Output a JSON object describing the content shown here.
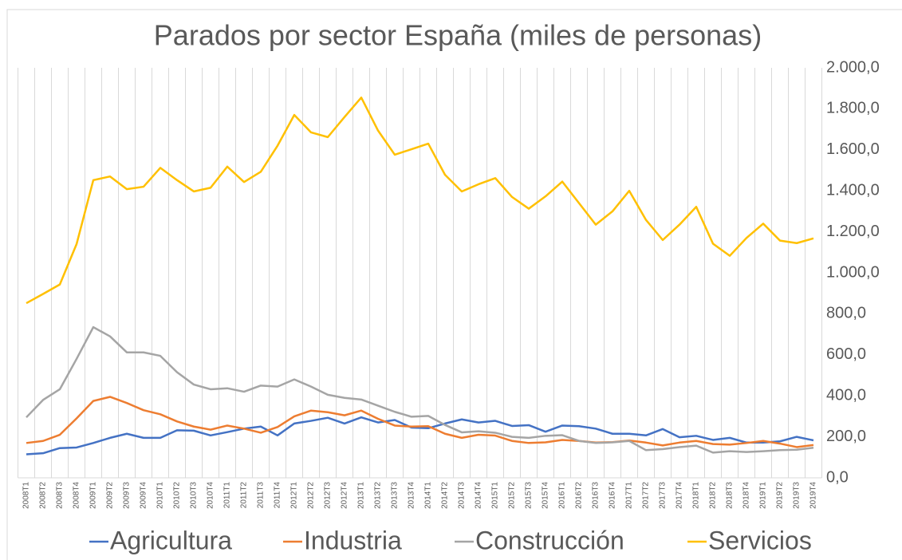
{
  "chart_data": {
    "type": "line",
    "title": "Parados por sector España (miles de personas)",
    "categories": [
      "2008T1",
      "2008T2",
      "2008T3",
      "2008T4",
      "2009T1",
      "2009T2",
      "2009T3",
      "2009T4",
      "2010T1",
      "2010T2",
      "2010T3",
      "2010T4",
      "2011T1",
      "2011T2",
      "2011T3",
      "2011T4",
      "2012T1",
      "2012T2",
      "2012T3",
      "2012T4",
      "2013T1",
      "2013T2",
      "2013T3",
      "2013T4",
      "2014T1",
      "2014T2",
      "2014T3",
      "2014T4",
      "2015T1",
      "2015T2",
      "2015T3",
      "2015T4",
      "2016T1",
      "2016T2",
      "2016T3",
      "2016T4",
      "2017T1",
      "2017T2",
      "2017T3",
      "2017T4",
      "2018T1",
      "2018T2",
      "2018T3",
      "2018T4",
      "2019T1",
      "2019T2",
      "2019T3",
      "2019T4"
    ],
    "series": [
      {
        "name": "Agricultura",
        "color": "#4472c4",
        "values": [
          115,
          120,
          145,
          148,
          170,
          195,
          215,
          195,
          195,
          232,
          230,
          207,
          223,
          240,
          250,
          207,
          265,
          278,
          293,
          265,
          295,
          270,
          282,
          245,
          242,
          265,
          285,
          270,
          278,
          253,
          257,
          225,
          255,
          252,
          240,
          215,
          215,
          207,
          238,
          198,
          205,
          185,
          195,
          172,
          172,
          178,
          200,
          183
        ]
      },
      {
        "name": "Industria",
        "color": "#ed7d31",
        "values": [
          170,
          180,
          210,
          290,
          375,
          395,
          365,
          330,
          310,
          275,
          250,
          235,
          255,
          240,
          220,
          248,
          300,
          328,
          320,
          305,
          328,
          288,
          255,
          250,
          252,
          215,
          195,
          210,
          206,
          180,
          170,
          173,
          185,
          180,
          172,
          174,
          182,
          172,
          158,
          172,
          180,
          165,
          162,
          170,
          180,
          167,
          150,
          160
        ]
      },
      {
        "name": "Construcción",
        "color": "#a5a5a5",
        "values": [
          295,
          380,
          432,
          580,
          735,
          690,
          612,
          612,
          595,
          515,
          455,
          432,
          437,
          420,
          450,
          445,
          480,
          445,
          405,
          390,
          382,
          352,
          322,
          298,
          302,
          258,
          222,
          227,
          220,
          200,
          195,
          205,
          208,
          180,
          170,
          173,
          180,
          135,
          140,
          150,
          157,
          123,
          130,
          126,
          130,
          135,
          137,
          147
        ]
      },
      {
        "name": "Servicios",
        "color": "#ffc000",
        "values": [
          852,
          897,
          943,
          1140,
          1452,
          1470,
          1408,
          1420,
          1512,
          1452,
          1397,
          1415,
          1518,
          1443,
          1493,
          1620,
          1770,
          1685,
          1662,
          1760,
          1855,
          1694,
          1576,
          1603,
          1630,
          1478,
          1397,
          1432,
          1462,
          1370,
          1313,
          1373,
          1445,
          1340,
          1235,
          1300,
          1400,
          1258,
          1160,
          1235,
          1322,
          1142,
          1083,
          1170,
          1240,
          1157,
          1145,
          1168
        ]
      }
    ],
    "ylim": [
      0,
      2000
    ],
    "yticks": [
      {
        "value": 0,
        "label": "0,0"
      },
      {
        "value": 200,
        "label": "200,0"
      },
      {
        "value": 400,
        "label": "400,0"
      },
      {
        "value": 600,
        "label": "600,0"
      },
      {
        "value": 800,
        "label": "800,0"
      },
      {
        "value": 1000,
        "label": "1.000,0"
      },
      {
        "value": 1200,
        "label": "1.200,0"
      },
      {
        "value": 1400,
        "label": "1.400,0"
      },
      {
        "value": 1600,
        "label": "1.600,0"
      },
      {
        "value": 1800,
        "label": "1.800,0"
      },
      {
        "value": 2000,
        "label": "2.000,0"
      }
    ],
    "legend": "bottom",
    "grid": "vertical"
  }
}
